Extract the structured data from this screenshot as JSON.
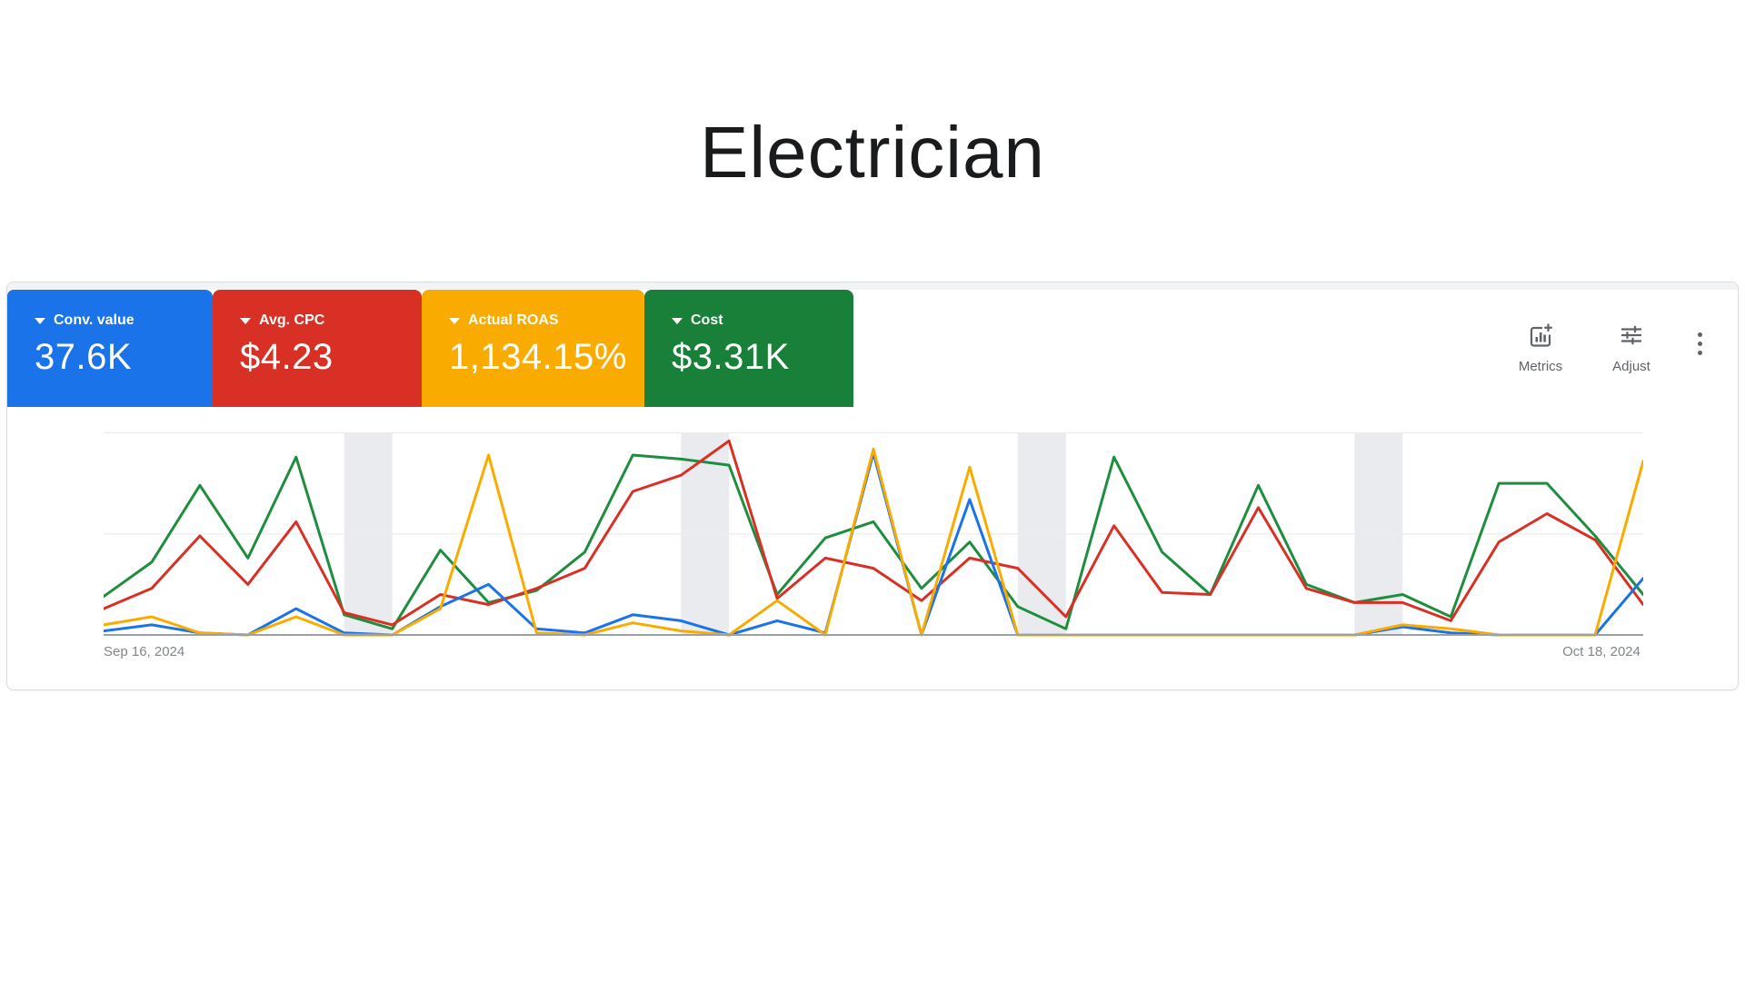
{
  "page": {
    "title": "Electrician"
  },
  "card": {
    "chips": [
      {
        "label": "Conv. value",
        "value": "37.6K",
        "color": "#1a73e8"
      },
      {
        "label": "Avg. CPC",
        "value": "$4.23",
        "color": "#d93025"
      },
      {
        "label": "Actual ROAS",
        "value": "1,134.15%",
        "color": "#f9ab00"
      },
      {
        "label": "Cost",
        "value": "$3.31K",
        "color": "#188038"
      }
    ],
    "toolbar": {
      "metrics": "Metrics",
      "adjust": "Adjust"
    }
  },
  "chart_data": {
    "type": "line",
    "title": "",
    "x_axis": {
      "start_label": "Sep 16, 2024",
      "end_label": "Oct 18, 2024",
      "num_points": 33,
      "interval": "daily"
    },
    "y_axis": {
      "tick_labels_visible": false,
      "ylim": [
        0,
        10.4
      ],
      "gridline_values": [
        5,
        10
      ],
      "units": "relative scale (0 = baseline, 10 = top gridline)"
    },
    "weekend_bands_day_indices": [
      [
        5,
        6
      ],
      [
        12,
        13
      ],
      [
        19,
        20
      ],
      [
        26,
        27
      ]
    ],
    "band_color": "#e9ebee",
    "gridline_color": "#ececec",
    "baseline_color": "#9aa0a6",
    "series": [
      {
        "name": "Conv. value",
        "color": "#1a73e8",
        "values": [
          0.2,
          0.5,
          0.1,
          0,
          1.3,
          0.1,
          0,
          1.4,
          2.5,
          0.3,
          0.1,
          1.0,
          0.7,
          0,
          0.7,
          0.1,
          9.0,
          0,
          6.7,
          0,
          0,
          0,
          0,
          0,
          0,
          0,
          0,
          0.4,
          0.1,
          0,
          0,
          0,
          2.8
        ]
      },
      {
        "name": "Avg. CPC",
        "color": "#d93025",
        "values": [
          1.3,
          2.3,
          4.9,
          2.5,
          5.6,
          1.1,
          0.5,
          2.0,
          1.5,
          2.3,
          3.3,
          7.1,
          7.9,
          9.6,
          1.8,
          3.8,
          3.3,
          1.7,
          3.8,
          3.3,
          0.9,
          5.4,
          2.1,
          2.0,
          6.3,
          2.3,
          1.6,
          1.6,
          0.7,
          4.6,
          6.0,
          4.7,
          1.5
        ]
      },
      {
        "name": "Actual ROAS",
        "color": "#f9ab00",
        "values": [
          0.5,
          0.9,
          0.1,
          0,
          0.9,
          0,
          0,
          1.3,
          8.9,
          0.1,
          0,
          0.6,
          0.2,
          0,
          1.7,
          0,
          9.2,
          0,
          8.3,
          0,
          0,
          0,
          0,
          0,
          0,
          0,
          0,
          0.5,
          0.3,
          0,
          0,
          0,
          8.6
        ]
      },
      {
        "name": "Cost",
        "color": "#1e8e3e",
        "values": [
          1.9,
          3.6,
          7.4,
          3.8,
          8.8,
          1.0,
          0.3,
          4.2,
          1.6,
          2.2,
          4.1,
          8.9,
          8.7,
          8.4,
          2.0,
          4.8,
          5.6,
          2.3,
          4.6,
          1.4,
          0.3,
          8.8,
          4.1,
          2.0,
          7.4,
          2.5,
          1.6,
          2.0,
          0.9,
          7.5,
          7.5,
          4.9,
          2.0
        ]
      }
    ],
    "draw_order": [
      3,
      1,
      0,
      2
    ],
    "legend_position": "chips-top"
  }
}
